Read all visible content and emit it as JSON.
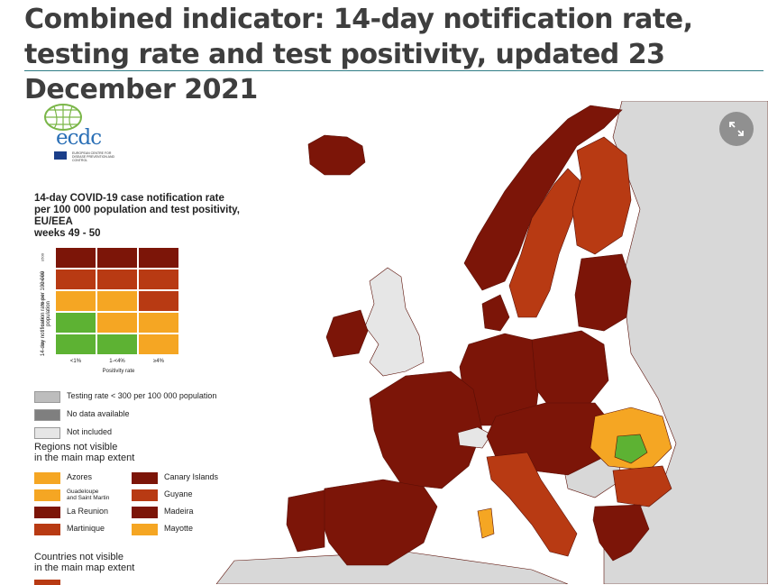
{
  "header": {
    "title": "Combined indicator: 14-day notification rate, testing rate and test positivity, updated 23 December 2021"
  },
  "colors": {
    "dark_red": "#7c1508",
    "red": "#b83a13",
    "orange": "#f5a623",
    "green": "#5db233",
    "light_grey": "#d8d8d8",
    "testing_grey": "#bdbdbd",
    "no_data_grey": "#7f7f7f",
    "not_included": "#e6e6e6",
    "sea": "#ffffff"
  },
  "logo": {
    "text": "ecdc",
    "subtext": "EUROPEAN CENTRE FOR DISEASE PREVENTION AND CONTROL"
  },
  "legend": {
    "title": "14-day COVID-19 case notification rate\nper 100 000 population and test positivity, EU/EEA\nweeks 49 - 50",
    "y_axis_label": "14-day notification rate per 100 000 population",
    "y_ticks": [
      "≥500",
      ">200-499",
      "75-200",
      "50-74",
      "<50"
    ],
    "x_ticks": [
      "<1%",
      "1-<4%",
      "≥4%"
    ],
    "x_axis_label": "Positivity rate",
    "matrix": [
      [
        "dark_red",
        "dark_red",
        "dark_red"
      ],
      [
        "red",
        "red",
        "red"
      ],
      [
        "orange",
        "orange",
        "red"
      ],
      [
        "green",
        "orange",
        "orange"
      ],
      [
        "green",
        "green",
        "orange"
      ]
    ],
    "status_items": [
      {
        "label": "Testing rate < 300 per 100 000 population",
        "color": "testing_grey"
      },
      {
        "label": "No data available",
        "color": "no_data_grey"
      },
      {
        "label": "Not included",
        "color": "not_included"
      }
    ],
    "regions_heading": "Regions not visible\nin the main map extent",
    "regions": [
      {
        "label": "Azores",
        "color": "orange"
      },
      {
        "label": "Canary Islands",
        "color": "dark_red"
      },
      {
        "label": "Guadeloupe\nand Saint Martin",
        "color": "orange"
      },
      {
        "label": "Guyane",
        "color": "red"
      },
      {
        "label": "La Reunion",
        "color": "dark_red"
      },
      {
        "label": "Madeira",
        "color": "dark_red"
      },
      {
        "label": "Martinique",
        "color": "red"
      },
      {
        "label": "Mayotte",
        "color": "orange"
      }
    ],
    "countries_heading": "Countries not visible\nin the main map extent"
  },
  "map": {
    "regions": [
      {
        "name": "Iceland",
        "status": "dark_red"
      },
      {
        "name": "Norway",
        "status": "dark_red"
      },
      {
        "name": "Sweden",
        "status": "red"
      },
      {
        "name": "Finland",
        "status": "red"
      },
      {
        "name": "Estonia",
        "status": "dark_red"
      },
      {
        "name": "Latvia",
        "status": "dark_red"
      },
      {
        "name": "Lithuania",
        "status": "dark_red"
      },
      {
        "name": "Denmark",
        "status": "dark_red"
      },
      {
        "name": "Ireland",
        "status": "dark_red"
      },
      {
        "name": "United Kingdom",
        "status": "not_included"
      },
      {
        "name": "France",
        "status": "dark_red"
      },
      {
        "name": "Spain",
        "status": "dark_red"
      },
      {
        "name": "Portugal",
        "status": "dark_red"
      },
      {
        "name": "Germany",
        "status": "dark_red"
      },
      {
        "name": "Poland",
        "status": "dark_red"
      },
      {
        "name": "Italy",
        "status": "red"
      },
      {
        "name": "Romania",
        "status": "orange"
      },
      {
        "name": "Bulgaria",
        "status": "red"
      },
      {
        "name": "Greece",
        "status": "dark_red"
      },
      {
        "name": "Switzerland",
        "status": "not_included"
      },
      {
        "name": "Sardinia",
        "status": "orange"
      },
      {
        "name": "Romania centre",
        "status": "green"
      }
    ]
  }
}
